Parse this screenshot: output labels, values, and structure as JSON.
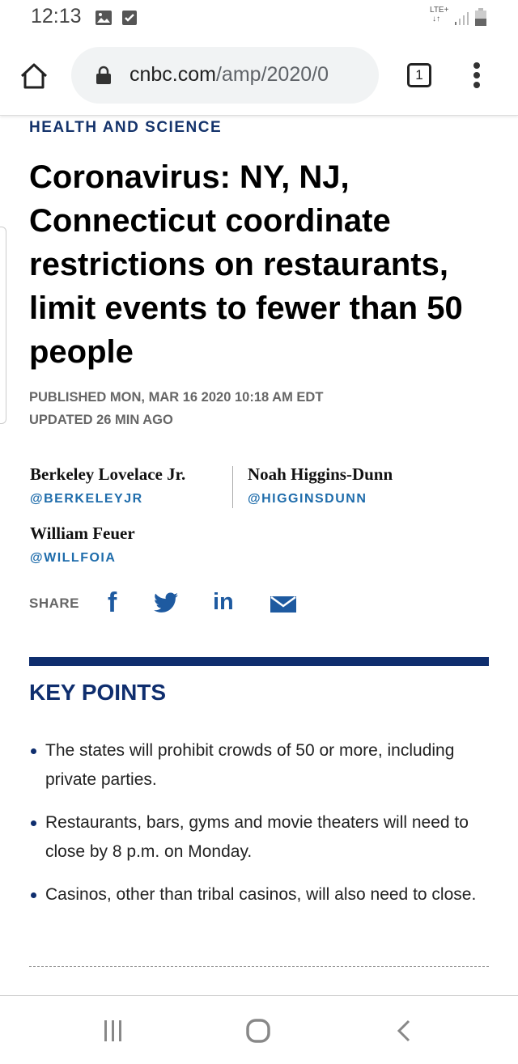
{
  "status_bar": {
    "time": "12:13",
    "network": "LTE+"
  },
  "browser": {
    "url_host": "cnbc.com",
    "url_path": "/amp/2020/0",
    "tab_count": "1"
  },
  "article": {
    "section": "HEALTH AND SCIENCE",
    "title": "Coronavirus: NY, NJ, Connecticut coordinate restrictions on restaurants, limit events to fewer than 50 people",
    "published": "PUBLISHED MON, MAR 16 2020 10:18 AM EDT",
    "updated": "UPDATED 26 MIN AGO",
    "authors": [
      {
        "name": "Berkeley Lovelace Jr.",
        "handle": "@BERKELEYJR"
      },
      {
        "name": "Noah Higgins-Dunn",
        "handle": "@HIGGINSDUNN"
      },
      {
        "name": "William Feuer",
        "handle": "@WILLFOIA"
      }
    ],
    "share_label": "SHARE",
    "share_icons": [
      "facebook-icon",
      "twitter-icon",
      "linkedin-icon",
      "email-icon"
    ],
    "key_points_heading": "KEY POINTS",
    "key_points": [
      "The states will prohibit crowds of 50 or more, including private parties.",
      "Restaurants, bars, gyms and movie theaters will need to close by 8 p.m. on Monday.",
      "Casinos, other than tribal casinos, will also need to close."
    ]
  },
  "colors": {
    "navy": "#0f2e6e",
    "link_blue": "#1e6cab"
  }
}
